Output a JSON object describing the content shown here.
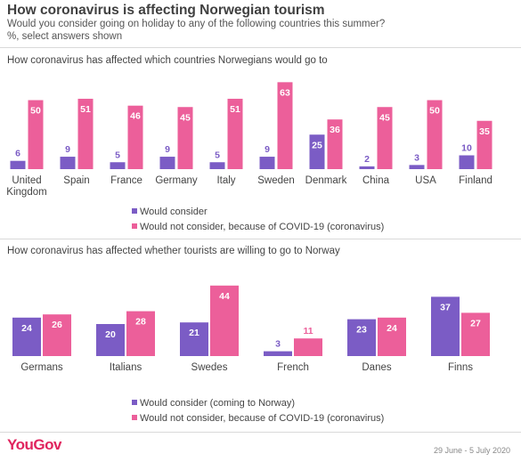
{
  "header": {
    "title": "How coronavirus is affecting Norwegian tourism",
    "subtitle": "Would you consider going on holiday to any of the following countries this summer?",
    "note": "%, select answers shown"
  },
  "colors": {
    "consider": "#7b5cc5",
    "not_consider": "#ec5f9a"
  },
  "chart_data": [
    {
      "type": "bar",
      "title": "How coronavirus has affected which countries Norwegians would go to",
      "categories": [
        "United Kingdom",
        "Spain",
        "France",
        "Germany",
        "Italy",
        "Sweden",
        "Denmark",
        "China",
        "USA",
        "Finland"
      ],
      "category_lines": [
        [
          "United",
          "Kingdom"
        ],
        [
          "Spain"
        ],
        [
          "France"
        ],
        [
          "Germany"
        ],
        [
          "Italy"
        ],
        [
          "Sweden"
        ],
        [
          "Denmark"
        ],
        [
          "China"
        ],
        [
          "USA"
        ],
        [
          "Finland"
        ]
      ],
      "series": [
        {
          "name": "Would consider",
          "values": [
            6,
            9,
            5,
            9,
            5,
            9,
            25,
            2,
            3,
            10
          ]
        },
        {
          "name": "Would not consider, because of COVID-19 (coronavirus)",
          "values": [
            50,
            51,
            46,
            45,
            51,
            63,
            36,
            45,
            50,
            35
          ]
        }
      ],
      "legend_position": "bottom"
    },
    {
      "type": "bar",
      "title": "How coronavirus has affected whether tourists are willing to go to Norway",
      "categories": [
        "Germans",
        "Italians",
        "Swedes",
        "French",
        "Danes",
        "Finns"
      ],
      "category_lines": [
        [
          "Germans"
        ],
        [
          "Italians"
        ],
        [
          "Swedes"
        ],
        [
          "French"
        ],
        [
          "Danes"
        ],
        [
          "Finns"
        ]
      ],
      "series": [
        {
          "name": "Would consider (coming to Norway)",
          "values": [
            24,
            20,
            21,
            3,
            23,
            37
          ]
        },
        {
          "name": "Would not consider, because of COVID-19 (coronavirus)",
          "values": [
            26,
            28,
            44,
            11,
            24,
            27
          ]
        }
      ],
      "legend_position": "bottom"
    }
  ],
  "footer": {
    "brand": "YouGov",
    "date": "29 June - 5 July 2020"
  }
}
